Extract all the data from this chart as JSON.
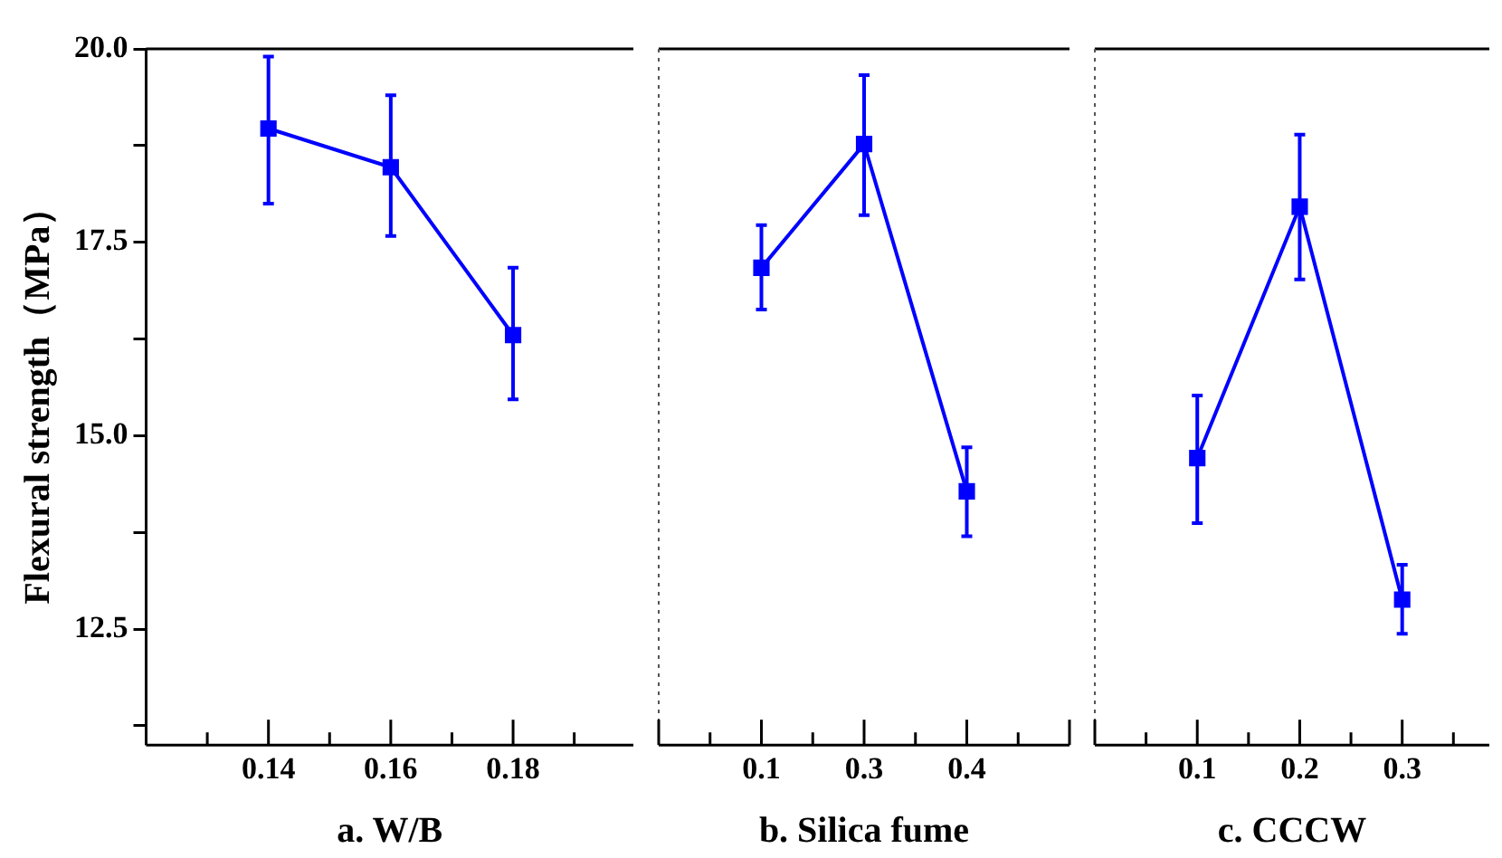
{
  "chart_data": [
    {
      "type": "line",
      "ylabel": "Flexural strength（MPa）",
      "xlabel": "a. W/B",
      "categories": [
        "0.14",
        "0.16",
        "0.18"
      ],
      "values": [
        18.97,
        18.47,
        16.3
      ],
      "errors": [
        [
          18.0,
          19.9
        ],
        [
          17.58,
          19.4
        ],
        [
          15.47,
          17.17
        ]
      ],
      "color": "#0000ff",
      "marker": "square",
      "line_style": "solid",
      "grid": false,
      "ylim": [
        11,
        20
      ],
      "yticks": [
        {
          "value": 11.25,
          "label": null
        },
        12.5,
        {
          "value": 13.75,
          "label": null
        },
        {
          "value": 15,
          "label": "15.0"
        },
        {
          "value": 16.25,
          "label": null
        },
        17.5,
        {
          "value": 18.75,
          "label": null
        },
        {
          "value": 20,
          "label": "20.0"
        }
      ]
    },
    {
      "type": "line",
      "xlabel": "b. Silica fume",
      "categories": [
        "0.1",
        "0.3",
        "0.4"
      ],
      "values": [
        17.17,
        18.77,
        14.28
      ],
      "errors": [
        [
          16.63,
          17.72
        ],
        [
          17.85,
          19.66
        ],
        [
          13.7,
          14.85
        ]
      ],
      "color": "#0000ff",
      "marker": "square",
      "line_style": "solid",
      "grid": false,
      "ylim": [
        11,
        20
      ],
      "tick_labels": "x"
    },
    {
      "type": "line",
      "xlabel": "c. CCCW",
      "categories": [
        "0.1",
        "0.2",
        "0.3"
      ],
      "values": [
        14.71,
        17.96,
        12.88
      ],
      "errors": [
        [
          13.87,
          15.52
        ],
        [
          17.02,
          18.89
        ],
        [
          12.44,
          13.33
        ]
      ],
      "color": "#0000ff",
      "marker": "square",
      "line_style": "solid",
      "grid": false,
      "ylim": [
        11,
        20
      ],
      "tick_labels": "x"
    }
  ]
}
